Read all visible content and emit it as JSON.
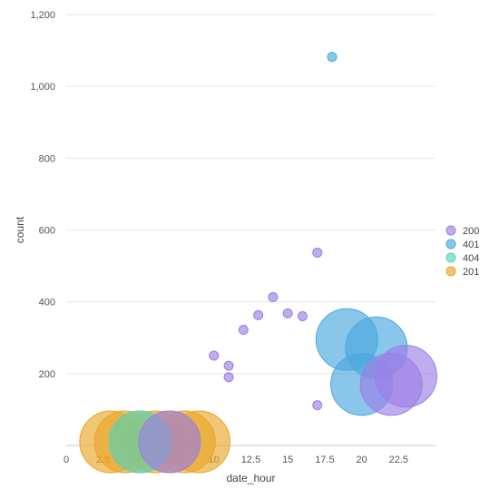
{
  "chart_data": {
    "type": "scatter",
    "xlabel": "date_hour",
    "ylabel": "count",
    "xlim": [
      0,
      25
    ],
    "ylim": [
      0,
      1200
    ],
    "x_ticks": [
      0,
      2.5,
      5,
      7.5,
      10,
      12.5,
      15,
      17.5,
      20,
      22.5
    ],
    "x_tick_labels": [
      "0",
      "2.5",
      "5",
      "7.5",
      "10",
      "12.5",
      "15",
      "17.5",
      "20",
      "22.5"
    ],
    "y_ticks": [
      200,
      400,
      600,
      800,
      1000,
      1200
    ],
    "y_tick_labels": [
      "200",
      "400",
      "600",
      "800",
      "1,000",
      "1,200"
    ],
    "grid": true,
    "legend_position": "right",
    "series": [
      {
        "name": "200",
        "color": "#9b7fe6",
        "points": [
          {
            "x": 10,
            "y": 250,
            "r": 1
          },
          {
            "x": 11,
            "y": 222,
            "r": 1
          },
          {
            "x": 11,
            "y": 190,
            "r": 1
          },
          {
            "x": 12,
            "y": 322,
            "r": 1
          },
          {
            "x": 13,
            "y": 363,
            "r": 1
          },
          {
            "x": 14,
            "y": 413,
            "r": 1
          },
          {
            "x": 15,
            "y": 368,
            "r": 1
          },
          {
            "x": 16,
            "y": 360,
            "r": 1
          },
          {
            "x": 17,
            "y": 537,
            "r": 1
          },
          {
            "x": 17,
            "y": 112,
            "r": 1
          },
          {
            "x": 22,
            "y": 170,
            "r": 5
          },
          {
            "x": 23,
            "y": 193,
            "r": 5
          },
          {
            "x": 7,
            "y": 10,
            "r": 5
          }
        ]
      },
      {
        "name": "401",
        "color": "#4aa8df",
        "points": [
          {
            "x": 18,
            "y": 1082,
            "r": 1
          },
          {
            "x": 19,
            "y": 295,
            "r": 5
          },
          {
            "x": 20,
            "y": 170,
            "r": 5
          },
          {
            "x": 21,
            "y": 272,
            "r": 5
          }
        ]
      },
      {
        "name": "404",
        "color": "#55d6c0",
        "points": [
          {
            "x": 5,
            "y": 10,
            "r": 5
          }
        ]
      },
      {
        "name": "201",
        "color": "#e8a62a",
        "points": [
          {
            "x": 3,
            "y": 10,
            "r": 5
          },
          {
            "x": 4,
            "y": 10,
            "r": 5
          },
          {
            "x": 5,
            "y": 10,
            "r": 5
          },
          {
            "x": 6,
            "y": 10,
            "r": 5
          },
          {
            "x": 7,
            "y": 10,
            "r": 5
          },
          {
            "x": 8,
            "y": 10,
            "r": 5
          },
          {
            "x": 9,
            "y": 10,
            "r": 5
          }
        ]
      }
    ]
  }
}
